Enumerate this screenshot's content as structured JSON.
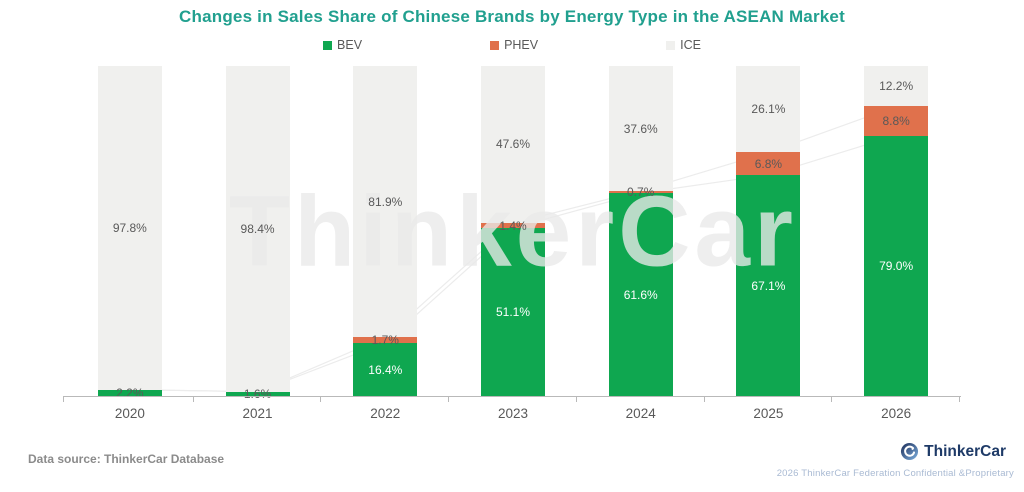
{
  "title": "Changes in Sales Share of Chinese Brands by Energy Type in the ASEAN Market",
  "watermark": "ThinkerCar",
  "chart_data": {
    "type": "bar",
    "stacked": true,
    "percent_stacked": true,
    "unit": "%",
    "ylim": [
      0,
      100
    ],
    "grid": false,
    "legend_position": "top",
    "categories": [
      "2020",
      "2021",
      "2022",
      "2023",
      "2024",
      "2025",
      "2026"
    ],
    "series": [
      {
        "name": "BEV",
        "color": "#0FA750",
        "values": [
          2.2,
          1.6,
          16.4,
          51.1,
          61.6,
          67.1,
          79.0
        ]
      },
      {
        "name": "PHEV",
        "color": "#E0714C",
        "values": [
          0,
          0,
          1.7,
          1.4,
          0.7,
          6.8,
          8.8
        ]
      },
      {
        "name": "ICE",
        "color": "#F0F0EE",
        "values": [
          97.8,
          98.4,
          81.9,
          47.6,
          37.6,
          26.1,
          12.2
        ]
      }
    ],
    "label_colors": {
      "inside_large": "#FFFFFF",
      "small_or_gray": "#595959"
    },
    "trend_line_color": "#ECECEC"
  },
  "colors": {
    "title": "#21A08F",
    "axis": "#B9B9B9",
    "brand_navy": "#1E3A67",
    "confidential_text": "#A9BAD3"
  },
  "footer": {
    "data_source": "Data source: ThinkerCar Database",
    "brand": "ThinkerCar",
    "confidential": "2026 ThinkerCar Federation Confidential &Proprietary"
  }
}
